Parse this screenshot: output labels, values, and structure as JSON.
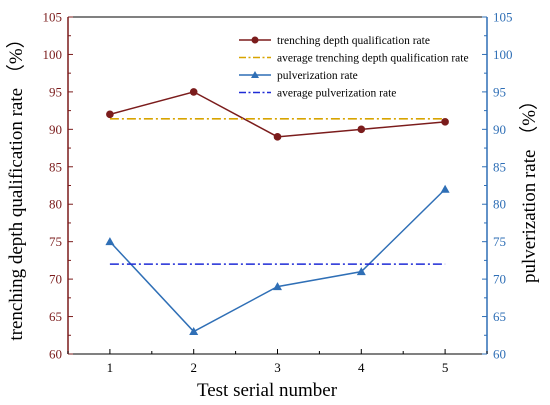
{
  "chart_data": {
    "type": "line",
    "xlabel": "Test serial number",
    "ylabel_left": "trenching depth qualification rate （%）",
    "ylabel_right": "pulverization rate （%）",
    "x": [
      1,
      2,
      3,
      4,
      5
    ],
    "xlim": [
      0.5,
      5.5
    ],
    "ylim_left": [
      60,
      105
    ],
    "ylim_right": [
      60,
      105
    ],
    "yticks": [
      60,
      65,
      70,
      75,
      80,
      85,
      90,
      95,
      100,
      105
    ],
    "grid": false,
    "legend_position": "top-right",
    "series": [
      {
        "name": "trenching depth qualification rate",
        "axis": "left",
        "values": [
          92,
          95,
          89,
          90,
          91
        ],
        "color": "#7b1c1c",
        "marker": "circle"
      },
      {
        "name": "average trenching depth qualification rate",
        "axis": "left",
        "value": 91.4,
        "color": "#d8a400",
        "style": "dash-dot",
        "average": true
      },
      {
        "name": "pulverization rate",
        "axis": "right",
        "values": [
          75,
          63,
          69,
          71,
          82
        ],
        "color": "#2f6fb6",
        "marker": "triangle"
      },
      {
        "name": "average pulverization rate",
        "axis": "right",
        "value": 72,
        "color": "#1f2bd6",
        "style": "dash-dot",
        "average": true
      }
    ],
    "left_axis_color": "#7b1c1c",
    "right_axis_color": "#2f6fb6"
  }
}
